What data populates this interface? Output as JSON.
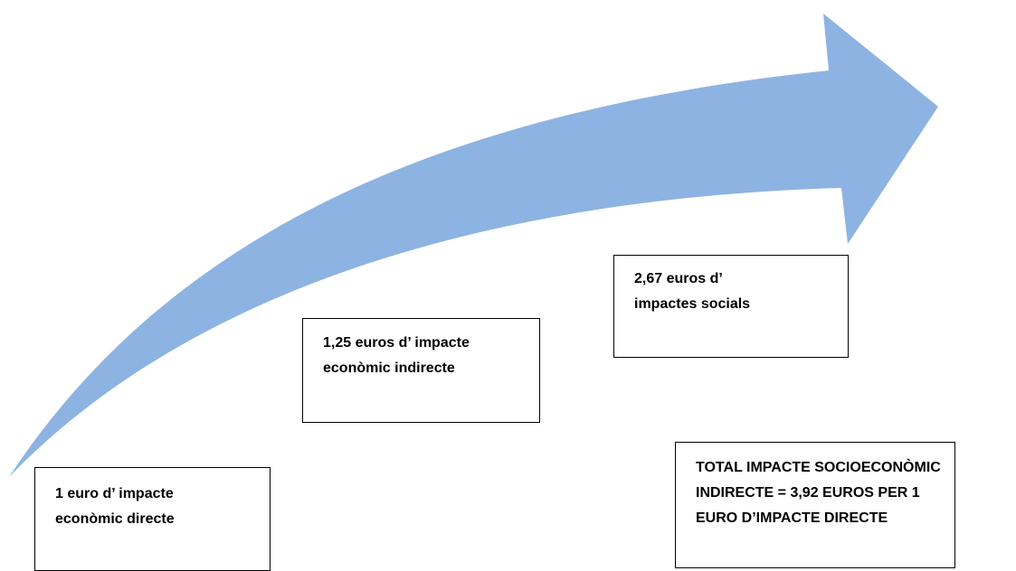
{
  "colors": {
    "arrow_fill": "#8DB3E2",
    "box_border": "#000000",
    "text": "#000000",
    "background": "#ffffff"
  },
  "arrow": {
    "icon": "curved-arrow-up-right"
  },
  "boxes": {
    "direct": {
      "line1": "1 euro d’ impacte",
      "line2": "econòmic directe"
    },
    "indirect": {
      "line1": "1,25 euros d’ impacte",
      "line2": "econòmic indirecte"
    },
    "social": {
      "line1": "2,67 euros d’",
      "line2": "impactes  socials"
    },
    "total": {
      "line1": "TOTAL IMPACTE SOCIOECONÒMIC",
      "line2": "INDIRECTE =  3,92 EUROS PER 1",
      "line3": "EURO D’IMPACTE DIRECTE"
    }
  }
}
